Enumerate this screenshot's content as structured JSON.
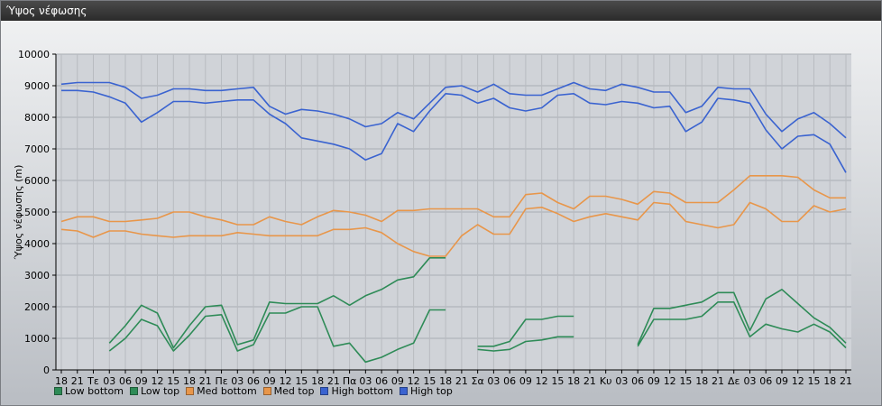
{
  "window": {
    "title": "Ύψος νέφωσης"
  },
  "chart_data": {
    "type": "line",
    "ylabel": "Ύψος νέφωσης (m)",
    "ylim": [
      0,
      10000
    ],
    "yticks": [
      0,
      1000,
      2000,
      3000,
      4000,
      5000,
      6000,
      7000,
      8000,
      9000,
      10000
    ],
    "grid": true,
    "legend_position": "bottom-left",
    "categories": [
      "18",
      "21",
      "Τε",
      "03",
      "06",
      "09",
      "12",
      "15",
      "18",
      "21",
      "Πε",
      "03",
      "06",
      "09",
      "12",
      "15",
      "18",
      "21",
      "Πα",
      "03",
      "06",
      "09",
      "12",
      "15",
      "18",
      "21",
      "Σα",
      "03",
      "06",
      "09",
      "12",
      "15",
      "18",
      "21",
      "Κυ",
      "03",
      "06",
      "09",
      "12",
      "15",
      "18",
      "21",
      "Δε",
      "03",
      "06",
      "09",
      "12",
      "15",
      "18",
      "21"
    ],
    "series": [
      {
        "name": "Low bottom",
        "color": "#2e8b57",
        "values": [
          null,
          null,
          null,
          600,
          1000,
          1600,
          1400,
          600,
          1100,
          1700,
          1750,
          600,
          800,
          1800,
          1800,
          2000,
          2000,
          750,
          850,
          250,
          400,
          650,
          850,
          1900,
          1900,
          null,
          650,
          600,
          650,
          900,
          950,
          1050,
          1050,
          null,
          null,
          null,
          750,
          1600,
          1600,
          1600,
          1700,
          2150,
          2150,
          1050,
          1450,
          1300,
          1200,
          1450,
          1200,
          700
        ]
      },
      {
        "name": "Low top",
        "color": "#2e8b57",
        "values": [
          null,
          null,
          null,
          850,
          1400,
          2050,
          1800,
          700,
          1400,
          2000,
          2050,
          800,
          950,
          2150,
          2100,
          2100,
          2100,
          2350,
          2050,
          2350,
          2550,
          2850,
          2950,
          3550,
          3550,
          null,
          750,
          750,
          900,
          1600,
          1600,
          1700,
          1700,
          null,
          null,
          null,
          800,
          1950,
          1950,
          2050,
          2150,
          2450,
          2450,
          1250,
          2250,
          2550,
          2100,
          1650,
          1350,
          850
        ]
      },
      {
        "name": "Med bottom",
        "color": "#e8964a",
        "values": [
          4450,
          4400,
          4200,
          4400,
          4400,
          4300,
          4250,
          4200,
          4250,
          4250,
          4250,
          4350,
          4300,
          4250,
          4250,
          4250,
          4250,
          4450,
          4450,
          4500,
          4350,
          4000,
          3750,
          3600,
          3600,
          4250,
          4600,
          4300,
          4300,
          5100,
          5150,
          4950,
          4700,
          4850,
          4950,
          4850,
          4750,
          5300,
          5250,
          4700,
          4600,
          4500,
          4600,
          5300,
          5100,
          4700,
          4700,
          5200,
          5000,
          5100
        ]
      },
      {
        "name": "Med top",
        "color": "#e8964a",
        "values": [
          4700,
          4850,
          4850,
          4700,
          4700,
          4750,
          4800,
          5000,
          5000,
          4850,
          4750,
          4600,
          4600,
          4850,
          4700,
          4600,
          4850,
          5050,
          5000,
          4900,
          4700,
          5050,
          5050,
          5100,
          5100,
          5100,
          5100,
          4850,
          4850,
          5550,
          5600,
          5300,
          5100,
          5500,
          5500,
          5400,
          5250,
          5650,
          5600,
          5300,
          5300,
          5300,
          5700,
          6150,
          6150,
          6150,
          6100,
          5700,
          5450,
          5450
        ]
      },
      {
        "name": "High bottom",
        "color": "#3a63d0",
        "values": [
          8850,
          8850,
          8800,
          8650,
          8450,
          7850,
          8150,
          8500,
          8500,
          8450,
          8500,
          8550,
          8550,
          8100,
          7800,
          7350,
          7250,
          7150,
          7000,
          6650,
          6850,
          7800,
          7550,
          8200,
          8750,
          8700,
          8450,
          8600,
          8300,
          8200,
          8300,
          8700,
          8750,
          8450,
          8400,
          8500,
          8450,
          8300,
          8350,
          7550,
          7850,
          8600,
          8550,
          8450,
          7600,
          7000,
          7400,
          7450,
          7150,
          6250
        ]
      },
      {
        "name": "High top",
        "color": "#3a63d0",
        "values": [
          9050,
          9100,
          9100,
          9100,
          8950,
          8600,
          8700,
          8900,
          8900,
          8850,
          8850,
          8900,
          8950,
          8350,
          8100,
          8250,
          8200,
          8100,
          7950,
          7700,
          7800,
          8150,
          7950,
          8450,
          8950,
          9000,
          8800,
          9050,
          8750,
          8700,
          8700,
          8900,
          9100,
          8900,
          8850,
          9050,
          8950,
          8800,
          8800,
          8150,
          8350,
          8950,
          8900,
          8900,
          8100,
          7550,
          7950,
          8150,
          7800,
          7350
        ]
      }
    ]
  }
}
